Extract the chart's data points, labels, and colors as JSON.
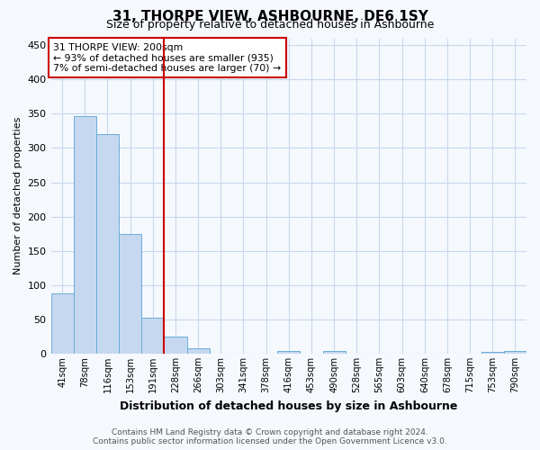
{
  "title": "31, THORPE VIEW, ASHBOURNE, DE6 1SY",
  "subtitle": "Size of property relative to detached houses in Ashbourne",
  "xlabel": "Distribution of detached houses by size in Ashbourne",
  "ylabel": "Number of detached properties",
  "footer_line1": "Contains HM Land Registry data © Crown copyright and database right 2024.",
  "footer_line2": "Contains public sector information licensed under the Open Government Licence v3.0.",
  "bar_labels": [
    "41sqm",
    "78sqm",
    "116sqm",
    "153sqm",
    "191sqm",
    "228sqm",
    "266sqm",
    "303sqm",
    "341sqm",
    "378sqm",
    "416sqm",
    "453sqm",
    "490sqm",
    "528sqm",
    "565sqm",
    "603sqm",
    "640sqm",
    "678sqm",
    "715sqm",
    "753sqm",
    "790sqm"
  ],
  "bar_values": [
    88,
    347,
    320,
    175,
    53,
    25,
    8,
    0,
    0,
    0,
    4,
    0,
    4,
    0,
    0,
    0,
    0,
    0,
    0,
    3,
    4
  ],
  "bar_color": "#c5d8f0",
  "bar_edge_color": "#6aaed6",
  "vline_x_index": 4,
  "vline_color": "#cc0000",
  "annotation_text": "31 THORPE VIEW: 200sqm\n← 93% of detached houses are smaller (935)\n7% of semi-detached houses are larger (70) →",
  "annotation_box_color": "#ffffff",
  "annotation_box_edge": "#cc0000",
  "ylim": [
    0,
    460
  ],
  "yticks": [
    0,
    50,
    100,
    150,
    200,
    250,
    300,
    350,
    400,
    450
  ],
  "background_color": "#f5f8fd",
  "grid_color": "#c8d8ec"
}
